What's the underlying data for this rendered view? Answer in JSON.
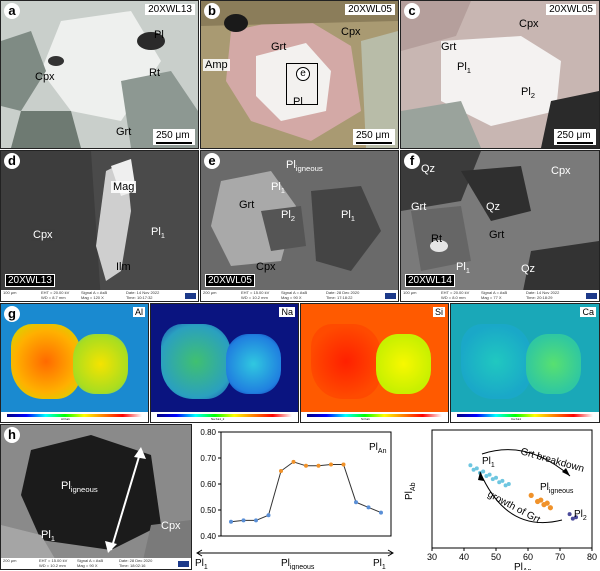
{
  "panel_a": {
    "letter": "a",
    "sample": "20XWL13",
    "labels": {
      "pl": "Pl",
      "rt": "Rt",
      "cpx": "Cpx",
      "grt": "Grt"
    },
    "scale": "250 μm"
  },
  "panel_b": {
    "letter": "b",
    "sample": "20XWL05",
    "labels": {
      "amp": "Amp",
      "grt": "Grt",
      "cpx": "Cpx",
      "e": "e",
      "pl": "Pl"
    },
    "scale": "250 μm"
  },
  "panel_c": {
    "letter": "c",
    "sample": "20XWL05",
    "labels": {
      "cpx": "Cpx",
      "grt": "Grt",
      "pl1": "Pl",
      "pl1_sub": "1",
      "pl2": "Pl",
      "pl2_sub": "2"
    },
    "scale": "250 μm"
  },
  "panel_d": {
    "letter": "d",
    "sample": "20XWL13",
    "labels": {
      "mag": "Mag",
      "cpx": "Cpx",
      "pl": "Pl",
      "pl_sub": "1",
      "ilm": "Ilm"
    },
    "info": {
      "scale": "100 μm",
      "eht": "EHT = 20.00 kV",
      "wd": "WD = 8.7 mm",
      "signal": "Signal A = AsB",
      "mag": "Mag = 120 X",
      "date": "Date: 14 Nov 2022",
      "time": "Time: 10:17:32"
    }
  },
  "panel_e": {
    "letter": "e",
    "sample": "20XWL05",
    "labels": {
      "pl_ign": "Pl",
      "pl_ign_sub": "igneous",
      "pl1": "Pl",
      "pl1_sub": "1",
      "grt": "Grt",
      "pl2": "Pl",
      "pl2_sub": "2",
      "pl1b": "Pl",
      "pl1b_sub": "1",
      "cpx": "Cpx"
    },
    "info": {
      "scale": "200 μm",
      "eht": "EHT = 15.00 kV",
      "wd": "WD = 10.2 mm",
      "signal": "Signal A = AsB",
      "mag": "Mag = 90 X",
      "date": "Date: 28 Dec 2020",
      "time": "Time: 17:18:22"
    }
  },
  "panel_f": {
    "letter": "f",
    "sample": "20XWL14",
    "labels": {
      "qz1": "Qz",
      "cpx": "Cpx",
      "grt1": "Grt",
      "qz2": "Qz",
      "rt": "Rt",
      "grt2": "Grt",
      "pl": "Pl",
      "pl_sub": "1",
      "qz3": "Qz"
    },
    "info": {
      "scale": "100 μm",
      "eht": "EHT = 20.00 kV",
      "wd": "WD = 8.0 mm",
      "signal": "Signal A = AsB",
      "mag": "Mag = 77 X",
      "date": "Date: 14 Nov 2022",
      "time": "Time: 20:18:29"
    }
  },
  "panel_g": {
    "letter": "g",
    "maps": [
      {
        "el": "Al",
        "cap": "Al Ka1"
      },
      {
        "el": "Na",
        "cap": "Na Ka1_2"
      },
      {
        "el": "Si",
        "cap": "Si Ka1"
      },
      {
        "el": "Ca",
        "cap": "Ca Ka1"
      }
    ]
  },
  "panel_h": {
    "letter": "h",
    "labels": {
      "pl_ign": "Pl",
      "pl_ign_sub": "igneous",
      "pl1": "Pl",
      "pl1_sub": "1",
      "cpx": "Cpx"
    },
    "info": {
      "scale": "200 μm",
      "eht": "EHT = 15.00 kV",
      "wd": "WD = 10.2 mm",
      "signal": "Signal A = AsB",
      "mag": "Mag = 90 X",
      "date": "Date: 28 Dec 2020",
      "time": "Time: 18:02:16"
    }
  },
  "chart_data": [
    {
      "type": "line",
      "series_label": "Pl",
      "series_label_sub": "An",
      "y": [
        0.455,
        0.46,
        0.46,
        0.48,
        0.65,
        0.685,
        0.67,
        0.67,
        0.675,
        0.675,
        0.53,
        0.51,
        0.49
      ],
      "ylim": [
        0.4,
        0.8
      ],
      "yticks": [
        "0.40",
        "0.50",
        "0.60",
        "0.70",
        "0.80"
      ],
      "x_left": "Pl",
      "x_left_sub": "1",
      "x_mid": "Pl",
      "x_mid_sub": "igneous",
      "x_right": "Pl",
      "x_right_sub": "1",
      "colors": {
        "pl1": "#5a8fd6",
        "igneous": "#f0922a",
        "line": "#333333"
      }
    },
    {
      "type": "scatter",
      "xlabel": "Pl",
      "xlabel_sub": "An",
      "ylabel": "Pl",
      "ylabel_sub": "Ab",
      "xlim": [
        30,
        80
      ],
      "xticks": [
        "30",
        "40",
        "50",
        "60",
        "70",
        "80"
      ],
      "series": [
        {
          "name": "Pl",
          "sub": "1",
          "color": "#6ec6e0",
          "x": [
            42,
            43,
            44,
            45,
            46,
            47,
            48,
            49,
            50,
            51,
            52,
            53,
            54
          ]
        },
        {
          "name": "Pl",
          "sub": "igneous",
          "color": "#f0922a",
          "x": [
            61,
            63,
            64,
            65,
            66,
            67
          ]
        },
        {
          "name": "Pl",
          "sub": "2",
          "color": "#4a4a9a",
          "x": [
            73,
            74,
            75
          ]
        }
      ],
      "annotations": {
        "grt_breakdown": "Grt breakdown",
        "growth": "growth of Grt"
      }
    }
  ]
}
